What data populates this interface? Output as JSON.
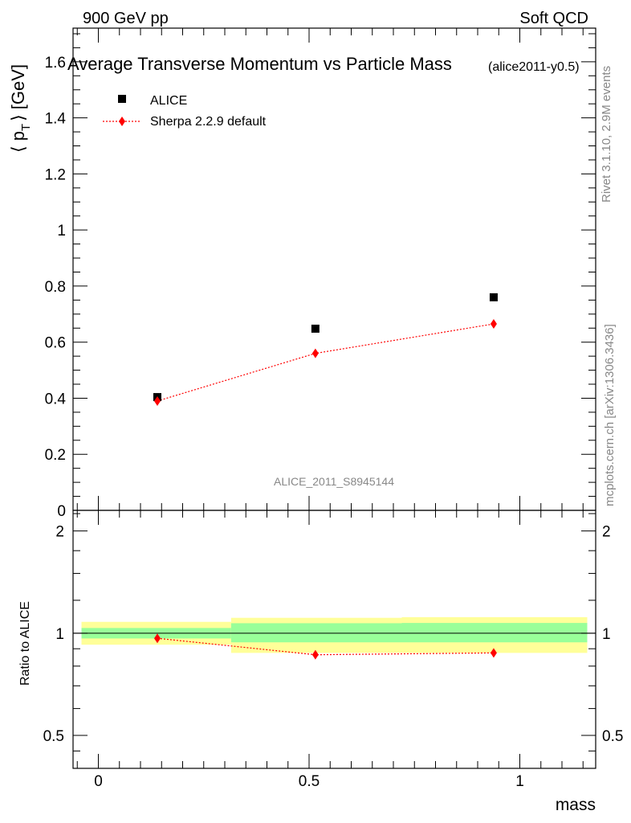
{
  "header": {
    "left": "900 GeV pp",
    "right": "Soft QCD"
  },
  "side_text": {
    "rivet": "Rivet 3.1.10,  2.9M events",
    "mcplots": "mcplots.cern.ch [arXiv:1306.3436]"
  },
  "chart_data": [
    {
      "type": "scatter",
      "title": "Average Transverse Momentum vs Particle Mass",
      "subtitle": "(alice2011-y0.5)",
      "ylabel": "⟨ p_T ⟩ [GeV]",
      "ylabel_main": "⟨ p",
      "ylabel_sub": "T",
      "ylabel_tail": "⟩ [GeV]",
      "xlabel": "",
      "watermark": "ALICE_2011_S8945144",
      "xlim": [
        -0.06,
        1.18
      ],
      "ylim": [
        0,
        1.72
      ],
      "yticks": [
        0,
        0.2,
        0.4,
        0.6,
        0.8,
        1,
        1.2,
        1.4,
        1.6
      ],
      "yticklabels": [
        "0",
        "0.2",
        "0.4",
        "0.6",
        "0.8",
        "1",
        "1.2",
        "1.4",
        "1.6"
      ],
      "legend_position": "top-left",
      "series": [
        {
          "name": "ALICE",
          "marker": "square",
          "color": "#000000",
          "x": [
            0.14,
            0.515,
            0.938
          ],
          "y": [
            0.404,
            0.648,
            0.76
          ]
        },
        {
          "name": "Sherpa 2.2.9 default",
          "marker": "diamond",
          "line": "dotted",
          "color": "#ff0000",
          "x": [
            0.14,
            0.515,
            0.938
          ],
          "y": [
            0.39,
            0.56,
            0.665
          ]
        }
      ]
    },
    {
      "type": "scatter",
      "title": "",
      "ylabel": "Ratio to ALICE",
      "xlabel": "mass",
      "xlim": [
        -0.06,
        1.18
      ],
      "ylim": [
        0.4,
        2.3
      ],
      "log_y": true,
      "xticks": [
        0,
        0.5,
        1
      ],
      "xticklabels": [
        "0",
        "0.5",
        "1"
      ],
      "yticks": [
        0.5,
        1,
        2
      ],
      "yticklabels": [
        "0.5",
        "1",
        "2"
      ],
      "reference_line": 1,
      "bands": [
        {
          "x": [
            -0.04,
            0.315
          ],
          "yellow": [
            0.925,
            1.08
          ],
          "green": [
            0.965,
            1.036
          ]
        },
        {
          "x": [
            0.315,
            0.72
          ],
          "yellow": [
            0.875,
            1.11
          ],
          "green": [
            0.94,
            1.07
          ]
        },
        {
          "x": [
            0.72,
            1.16
          ],
          "yellow": [
            0.875,
            1.115
          ],
          "green": [
            0.94,
            1.072
          ]
        }
      ],
      "colors": {
        "yellow": "#ffff99",
        "green": "#99ff99"
      },
      "series": [
        {
          "name": "Sherpa 2.2.9 default",
          "marker": "diamond",
          "line": "dotted",
          "color": "#ff0000",
          "x": [
            0.14,
            0.515,
            0.938
          ],
          "y": [
            0.966,
            0.864,
            0.875
          ]
        }
      ]
    }
  ]
}
